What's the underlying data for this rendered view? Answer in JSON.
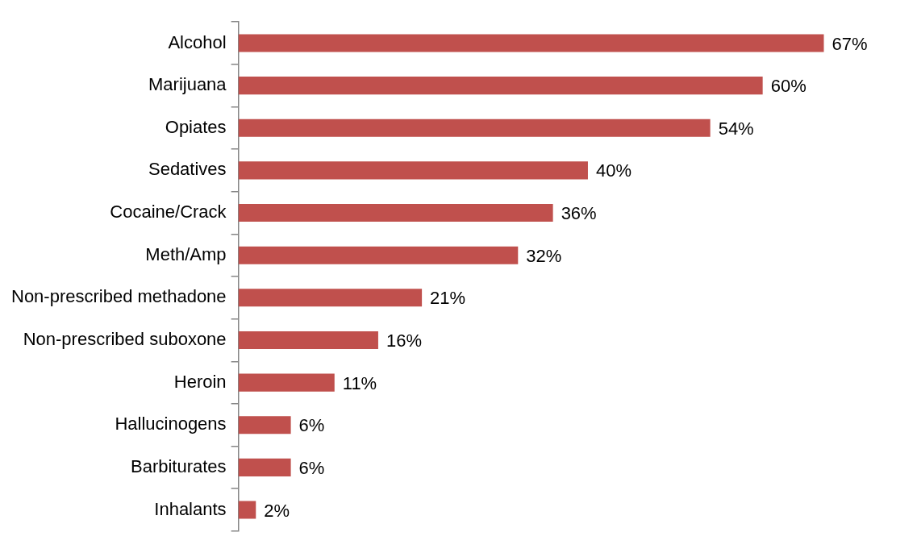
{
  "chart_data": {
    "type": "bar",
    "orientation": "horizontal",
    "categories": [
      "Alcohol",
      "Marijuana",
      "Opiates",
      "Sedatives",
      "Cocaine/Crack",
      "Meth/Amp",
      "Non-prescribed methadone",
      "Non-prescribed suboxone",
      "Heroin",
      "Hallucinogens",
      "Barbiturates",
      "Inhalants"
    ],
    "values": [
      67,
      60,
      54,
      40,
      36,
      32,
      21,
      16,
      11,
      6,
      6,
      2
    ],
    "value_labels": [
      "67%",
      "60%",
      "54%",
      "40%",
      "36%",
      "32%",
      "21%",
      "16%",
      "11%",
      "6%",
      "6%",
      "2%"
    ],
    "color": "#c0504d",
    "legend": false
  }
}
